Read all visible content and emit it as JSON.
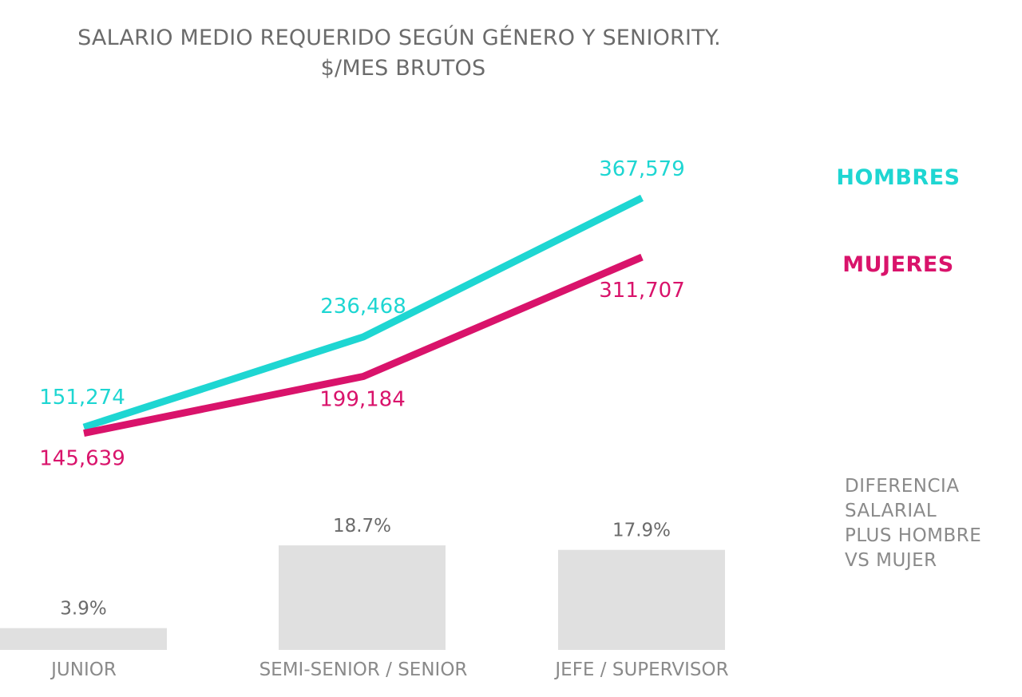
{
  "chart_data": {
    "type": "line",
    "title_lines": [
      "SALARIO MEDIO REQUERIDO SEGÚN GÉNERO Y SENIORITY.",
      "$/MES BRUTOS"
    ],
    "categories": [
      "JUNIOR",
      "SEMI-SENIOR / SENIOR",
      "JEFE / SUPERVISOR"
    ],
    "series": [
      {
        "name": "HOMBRES",
        "color": "#1ed6d2",
        "values": [
          151274,
          236468,
          367579
        ],
        "labels": [
          "151,274",
          "236,468",
          "367,579"
        ]
      },
      {
        "name": "MUJERES",
        "color": "#d9136b",
        "values": [
          145639,
          199184,
          311707
        ],
        "labels": [
          "145,639",
          "199,184",
          "311,707"
        ]
      }
    ],
    "difference": {
      "label_lines": [
        "DIFERENCIA",
        "SALARIAL",
        "PLUS HOMBRE",
        "VS MUJER"
      ],
      "type": "bar",
      "values": [
        3.9,
        18.7,
        17.9
      ],
      "labels": [
        "3.9%",
        "18.7%",
        "17.9%"
      ],
      "bar_color": "#e0e0e0"
    },
    "grid": false
  }
}
